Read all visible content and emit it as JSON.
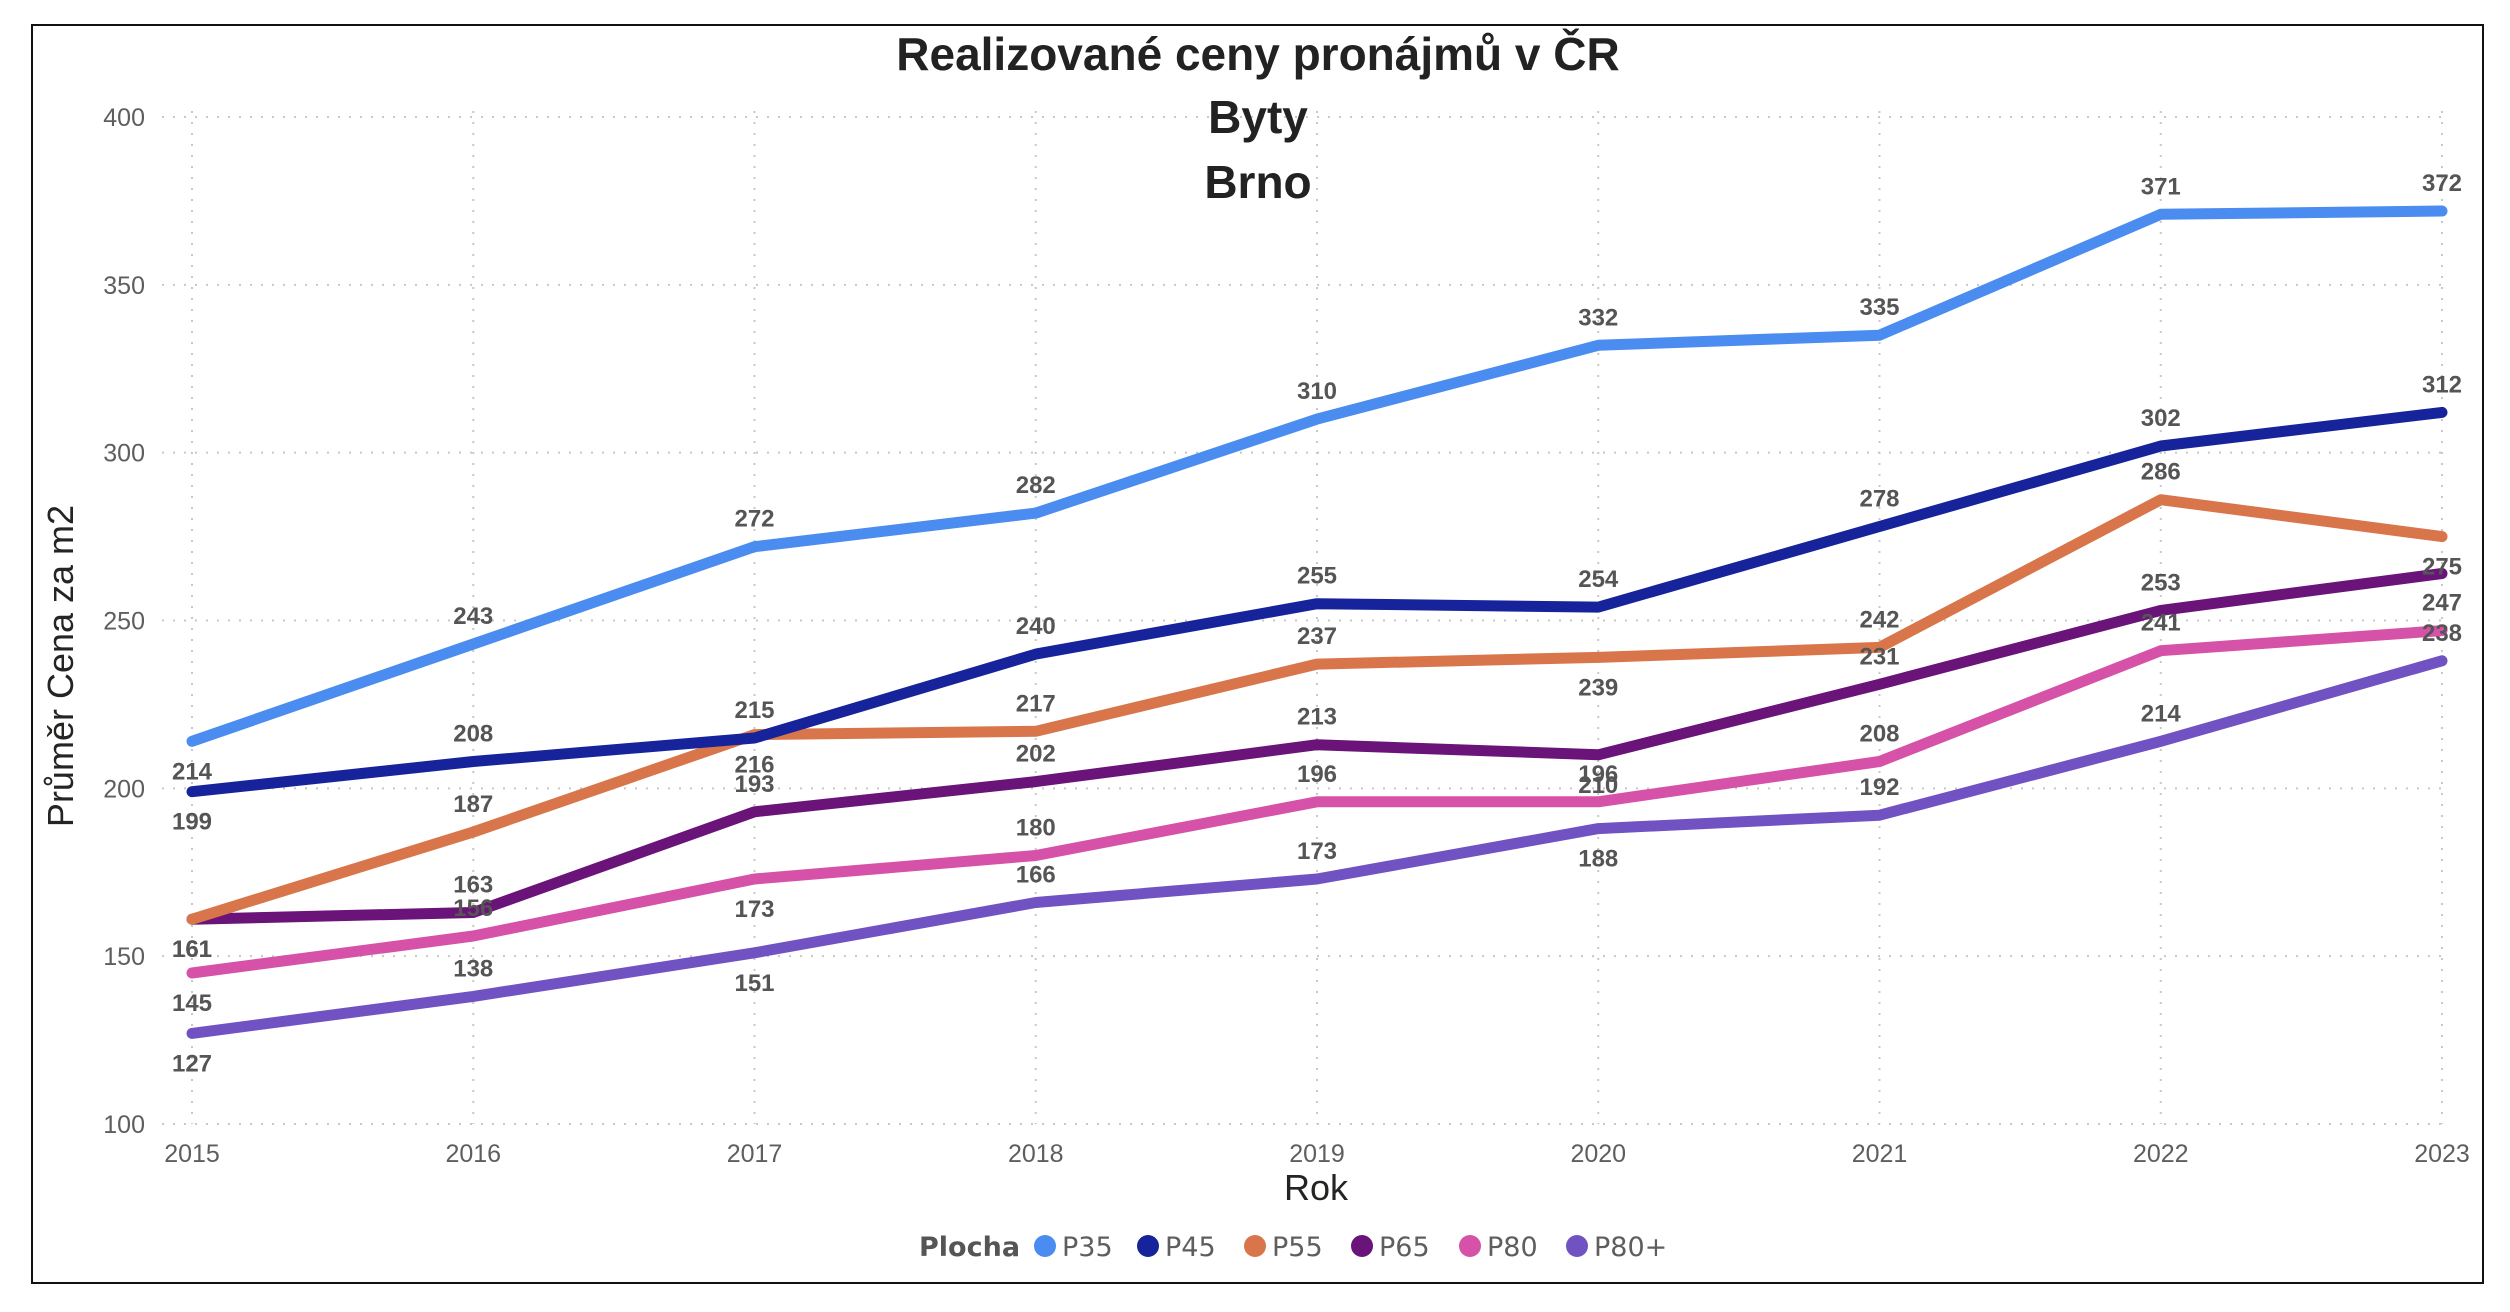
{
  "chart_data": {
    "type": "line",
    "title": [
      "Realizované ceny pronájmů v ČR",
      "Byty",
      "Brno"
    ],
    "xlabel": "Rok",
    "ylabel": "Průměr Cena za m2",
    "x": [
      "2015",
      "2016",
      "2017",
      "2018",
      "2019",
      "2020",
      "2021",
      "2022",
      "2023"
    ],
    "ylim": [
      100,
      400
    ],
    "yticks": [
      "100",
      "150",
      "200",
      "250",
      "300",
      "350",
      "400"
    ],
    "grid": true,
    "legend": {
      "title": "Plocha",
      "position": "bottom-center"
    },
    "series": [
      {
        "name": "P35",
        "color": "#4a8cf0",
        "values": [
          214,
          243,
          272,
          282,
          310,
          332,
          335,
          371,
          372
        ],
        "label_pos": [
          "below",
          "above",
          "above",
          "above",
          "above",
          "above",
          "above",
          "above",
          "above"
        ]
      },
      {
        "name": "P45",
        "color": "#16239a",
        "values": [
          199,
          208,
          215,
          240,
          255,
          254,
          278,
          302,
          312
        ],
        "label_pos": [
          "below",
          "above",
          "above",
          "above",
          "above",
          "above",
          "above",
          "above",
          "above"
        ]
      },
      {
        "name": "P55",
        "color": "#d9754a",
        "values": [
          161,
          187,
          216,
          217,
          237,
          239,
          242,
          286,
          275
        ],
        "label_pos": [
          "below",
          "above",
          "below",
          "above",
          "above",
          "below",
          "above",
          "above",
          "below"
        ]
      },
      {
        "name": "P65",
        "color": "#6a1379",
        "values": [
          161,
          163,
          193,
          202,
          213,
          210,
          231,
          253,
          264
        ],
        "label_pos": [
          "below",
          "above",
          "above",
          "above",
          "above",
          "below",
          "above",
          "above",
          "above"
        ]
      },
      {
        "name": "P80",
        "color": "#d552a8",
        "values": [
          145,
          156,
          173,
          180,
          196,
          196,
          208,
          241,
          247
        ],
        "label_pos": [
          "below",
          "above",
          "below",
          "above",
          "above",
          "above",
          "above",
          "above",
          "above"
        ]
      },
      {
        "name": "P80+",
        "color": "#7152c3",
        "values": [
          127,
          138,
          151,
          166,
          173,
          188,
          192,
          214,
          238
        ],
        "label_pos": [
          "below",
          "above",
          "below",
          "above",
          "above",
          "below",
          "above",
          "above",
          "above"
        ]
      }
    ],
    "data_labels": [
      [
        "214",
        "243",
        "272",
        "282",
        "310",
        "332",
        "335",
        "371",
        "372"
      ],
      [
        "199",
        "208",
        "215",
        "240",
        "255",
        "254",
        "278",
        "302",
        "312"
      ],
      [
        "161",
        "187",
        "216",
        "217",
        "237",
        "239",
        "242",
        "286",
        "275"
      ],
      [
        "161",
        "163",
        "193",
        "202",
        "213",
        "210",
        "231",
        "253",
        ""
      ],
      [
        "145",
        "156",
        "173",
        "180",
        "196",
        "196",
        "208",
        "241",
        "247"
      ],
      [
        "127",
        "138",
        "151",
        "166",
        "173",
        "188",
        "192",
        "214",
        "238"
      ]
    ]
  }
}
